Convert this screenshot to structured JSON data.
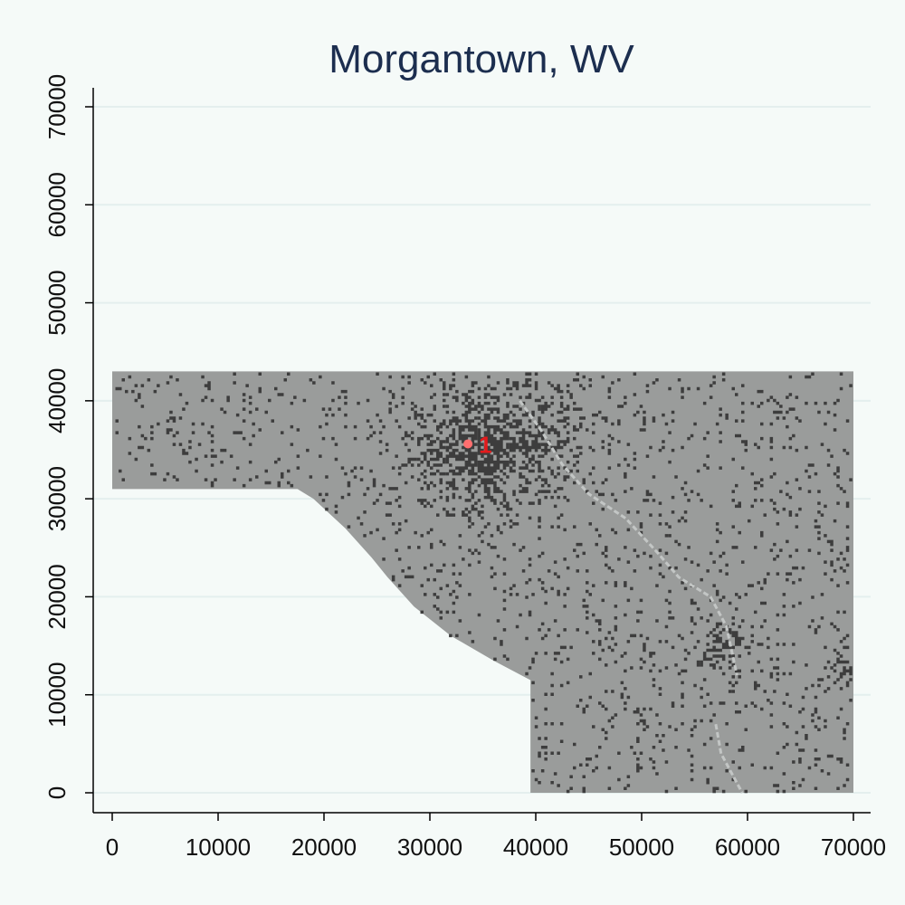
{
  "chart_data": {
    "type": "heatmap",
    "title": "Morgantown, WV",
    "xlabel": "",
    "ylabel": "",
    "xlim": [
      0,
      70000
    ],
    "ylim": [
      0,
      70000
    ],
    "x_ticks": [
      0,
      10000,
      20000,
      30000,
      40000,
      50000,
      60000,
      70000
    ],
    "y_ticks": [
      0,
      10000,
      20000,
      30000,
      40000,
      50000,
      60000,
      70000
    ],
    "y_gridlines": true,
    "region_boundary": [
      [
        0,
        43000
      ],
      [
        70000,
        43000
      ],
      [
        70000,
        0
      ],
      [
        39500,
        0
      ],
      [
        39500,
        11500
      ],
      [
        36000,
        13500
      ],
      [
        32000,
        16000
      ],
      [
        28500,
        19000
      ],
      [
        26000,
        22000
      ],
      [
        24500,
        24000
      ],
      [
        22000,
        27000
      ],
      [
        19000,
        30000
      ],
      [
        17500,
        31000
      ],
      [
        0,
        31000
      ]
    ],
    "clusters": [
      {
        "x": 33500,
        "y": 35000,
        "spread": 3200,
        "density": 0.55
      },
      {
        "x": 39000,
        "y": 36500,
        "spread": 3500,
        "density": 0.35
      },
      {
        "x": 58000,
        "y": 15000,
        "spread": 1500,
        "density": 0.45
      },
      {
        "x": 69000,
        "y": 12500,
        "spread": 900,
        "density": 0.45
      }
    ],
    "highlight_points": [
      {
        "label": "1",
        "x": 33600,
        "y": 35600
      }
    ],
    "colors": {
      "background": "#f5faf8",
      "region_fill": "#9a9c9b",
      "built_cells": "#3d3d3d",
      "river": "#c3c6c5",
      "highlight": "#ff6f6f",
      "highlight_label": "#e41a1c",
      "title": "#1c2e4f",
      "gridline": "#e4efee"
    }
  }
}
